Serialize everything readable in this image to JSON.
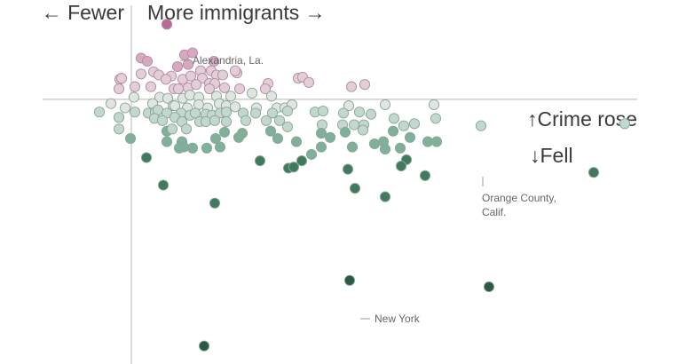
{
  "chart_data": {
    "type": "scatter",
    "title": "",
    "xlabel_left": "← Fewer",
    "xlabel_right": "More immigrants →",
    "ylabel_up": "↑Crime rose",
    "ylabel_down": "↓Fell",
    "xlim": [
      -100,
      560
    ],
    "ylim": [
      -250,
      88
    ],
    "x_zero": 0,
    "y_zero": 0,
    "color_scale": {
      "rose_strong": "#b56e92",
      "rose_light": "#e2cdd8",
      "neutral": "#dfe6e2",
      "fell_light": "#c2d8cd",
      "fell_mid": "#7fb09a",
      "fell_strong": "#3f7a5e",
      "fell_darkest": "#295a43"
    },
    "annotations": [
      {
        "label": "Alexandria, La.",
        "x": 40,
        "y": 71
      },
      {
        "label": "Orange County, Calif.",
        "x": 395,
        "y": -29
      },
      {
        "label": "New York",
        "x": 246,
        "y": -171
      }
    ],
    "points": [
      {
        "x": 40,
        "y": 71
      },
      {
        "x": 11,
        "y": 39
      },
      {
        "x": 18,
        "y": 36
      },
      {
        "x": 60,
        "y": 42
      },
      {
        "x": 69,
        "y": 44
      },
      {
        "x": 93,
        "y": 36
      },
      {
        "x": 119,
        "y": 25
      },
      {
        "x": 117,
        "y": 27
      },
      {
        "x": 64,
        "y": 33
      },
      {
        "x": 52,
        "y": 31
      },
      {
        "x": 78,
        "y": 27
      },
      {
        "x": 90,
        "y": 27
      },
      {
        "x": 96,
        "y": 23
      },
      {
        "x": 103,
        "y": 23
      },
      {
        "x": -13,
        "y": 19
      },
      {
        "x": -11,
        "y": 20
      },
      {
        "x": 11,
        "y": 24
      },
      {
        "x": 25,
        "y": 26
      },
      {
        "x": 45,
        "y": 22
      },
      {
        "x": 31,
        "y": 23
      },
      {
        "x": 39,
        "y": 19
      },
      {
        "x": 58,
        "y": 19
      },
      {
        "x": 67,
        "y": 22
      },
      {
        "x": 80,
        "y": 20
      },
      {
        "x": 88,
        "y": 15
      },
      {
        "x": 94,
        "y": 15
      },
      {
        "x": 154,
        "y": 15
      },
      {
        "x": 188,
        "y": 20
      },
      {
        "x": 193,
        "y": 21
      },
      {
        "x": 200,
        "y": 16
      },
      {
        "x": 248,
        "y": 12
      },
      {
        "x": 263,
        "y": 14
      },
      {
        "x": -14,
        "y": 10
      },
      {
        "x": 4,
        "y": 12
      },
      {
        "x": 22,
        "y": 12
      },
      {
        "x": 48,
        "y": 10
      },
      {
        "x": 53,
        "y": 10
      },
      {
        "x": 64,
        "y": 11
      },
      {
        "x": 73,
        "y": 14
      },
      {
        "x": 88,
        "y": 10
      },
      {
        "x": 105,
        "y": 11
      },
      {
        "x": 122,
        "y": 10
      },
      {
        "x": 151,
        "y": 10
      },
      {
        "x": 3,
        "y": 2
      },
      {
        "x": 32,
        "y": 2
      },
      {
        "x": 41,
        "y": 1
      },
      {
        "x": 58,
        "y": 1
      },
      {
        "x": 66,
        "y": 4
      },
      {
        "x": 76,
        "y": 2
      },
      {
        "x": 96,
        "y": 3
      },
      {
        "x": 112,
        "y": 3
      },
      {
        "x": 136,
        "y": 6
      },
      {
        "x": 158,
        "y": 3
      },
      {
        "x": -23,
        "y": -4
      },
      {
        "x": -7,
        "y": -8
      },
      {
        "x": 24,
        "y": -4
      },
      {
        "x": 47,
        "y": -6
      },
      {
        "x": 49,
        "y": -6
      },
      {
        "x": 63,
        "y": -8
      },
      {
        "x": 76,
        "y": -5
      },
      {
        "x": 86,
        "y": -8
      },
      {
        "x": 99,
        "y": -4
      },
      {
        "x": 107,
        "y": -6
      },
      {
        "x": 117,
        "y": -7
      },
      {
        "x": 141,
        "y": -8
      },
      {
        "x": 164,
        "y": -8
      },
      {
        "x": 173,
        "y": -8
      },
      {
        "x": 181,
        "y": -5
      },
      {
        "x": 245,
        "y": -6
      },
      {
        "x": 286,
        "y": -5
      },
      {
        "x": 341,
        "y": -5
      },
      {
        "x": -36,
        "y": -12
      },
      {
        "x": 4,
        "y": -12
      },
      {
        "x": 19,
        "y": -13
      },
      {
        "x": 27,
        "y": -12
      },
      {
        "x": 30,
        "y": -10
      },
      {
        "x": 40,
        "y": -13
      },
      {
        "x": 56,
        "y": -13
      },
      {
        "x": 66,
        "y": -15
      },
      {
        "x": 72,
        "y": -13
      },
      {
        "x": 84,
        "y": -14
      },
      {
        "x": 91,
        "y": -15
      },
      {
        "x": 100,
        "y": -13
      },
      {
        "x": 107,
        "y": -12
      },
      {
        "x": 126,
        "y": -13
      },
      {
        "x": 140,
        "y": -13
      },
      {
        "x": 159,
        "y": -13
      },
      {
        "x": 176,
        "y": -11
      },
      {
        "x": 207,
        "y": -12
      },
      {
        "x": 216,
        "y": -11
      },
      {
        "x": 239,
        "y": -13
      },
      {
        "x": 257,
        "y": -12
      },
      {
        "x": 270,
        "y": -14
      },
      {
        "x": 296,
        "y": -18
      },
      {
        "x": 343,
        "y": -18
      },
      {
        "x": 556,
        "y": -23
      },
      {
        "x": -14,
        "y": -17
      },
      {
        "x": 26,
        "y": -18
      },
      {
        "x": 35,
        "y": -20
      },
      {
        "x": 49,
        "y": -17
      },
      {
        "x": 57,
        "y": -21
      },
      {
        "x": 77,
        "y": -21
      },
      {
        "x": 84,
        "y": -21
      },
      {
        "x": 94,
        "y": -20
      },
      {
        "x": 107,
        "y": -21
      },
      {
        "x": 129,
        "y": -20
      },
      {
        "x": 152,
        "y": -20
      },
      {
        "x": 167,
        "y": -20
      },
      {
        "x": 176,
        "y": -26
      },
      {
        "x": 215,
        "y": -24
      },
      {
        "x": 238,
        "y": -24
      },
      {
        "x": 251,
        "y": -24
      },
      {
        "x": 262,
        "y": -24
      },
      {
        "x": 394,
        "y": -25
      },
      {
        "x": 307,
        "y": -25
      },
      {
        "x": 319,
        "y": -23
      },
      {
        "x": -14,
        "y": -28
      },
      {
        "x": 40,
        "y": -30
      },
      {
        "x": 46,
        "y": -28
      },
      {
        "x": 62,
        "y": -28
      },
      {
        "x": 105,
        "y": -31
      },
      {
        "x": 125,
        "y": -32
      },
      {
        "x": 157,
        "y": -30
      },
      {
        "x": 214,
        "y": -32
      },
      {
        "x": 241,
        "y": -31
      },
      {
        "x": 261,
        "y": -29
      },
      {
        "x": 295,
        "y": -30
      },
      {
        "x": -1,
        "y": -37
      },
      {
        "x": 40,
        "y": -40
      },
      {
        "x": 57,
        "y": -40
      },
      {
        "x": 95,
        "y": -37
      },
      {
        "x": 121,
        "y": -36
      },
      {
        "x": 165,
        "y": -37
      },
      {
        "x": 186,
        "y": -40
      },
      {
        "x": 224,
        "y": -36
      },
      {
        "x": 274,
        "y": -42
      },
      {
        "x": 284,
        "y": -40
      },
      {
        "x": 314,
        "y": -36
      },
      {
        "x": 334,
        "y": -40
      },
      {
        "x": 344,
        "y": -40
      },
      {
        "x": 59,
        "y": -45
      },
      {
        "x": 54,
        "y": -46
      },
      {
        "x": 69,
        "y": -46
      },
      {
        "x": 85,
        "y": -46
      },
      {
        "x": 100,
        "y": -45
      },
      {
        "x": 214,
        "y": -45
      },
      {
        "x": 249,
        "y": -45
      },
      {
        "x": 286,
        "y": -47
      },
      {
        "x": 303,
        "y": -46
      },
      {
        "x": 17,
        "y": -55
      },
      {
        "x": 203,
        "y": -52
      },
      {
        "x": 145,
        "y": -58
      },
      {
        "x": 177,
        "y": -65
      },
      {
        "x": 192,
        "y": -58
      },
      {
        "x": 183,
        "y": -64
      },
      {
        "x": 310,
        "y": -57
      },
      {
        "x": 304,
        "y": -63
      },
      {
        "x": 244,
        "y": -66
      },
      {
        "x": 331,
        "y": -72
      },
      {
        "x": 521,
        "y": -69
      },
      {
        "x": 36,
        "y": -81
      },
      {
        "x": 252,
        "y": -84
      },
      {
        "x": 286,
        "y": -92
      },
      {
        "x": 94,
        "y": -98
      },
      {
        "x": 246,
        "y": -171
      },
      {
        "x": 403,
        "y": -177
      },
      {
        "x": 82,
        "y": -233
      }
    ]
  }
}
